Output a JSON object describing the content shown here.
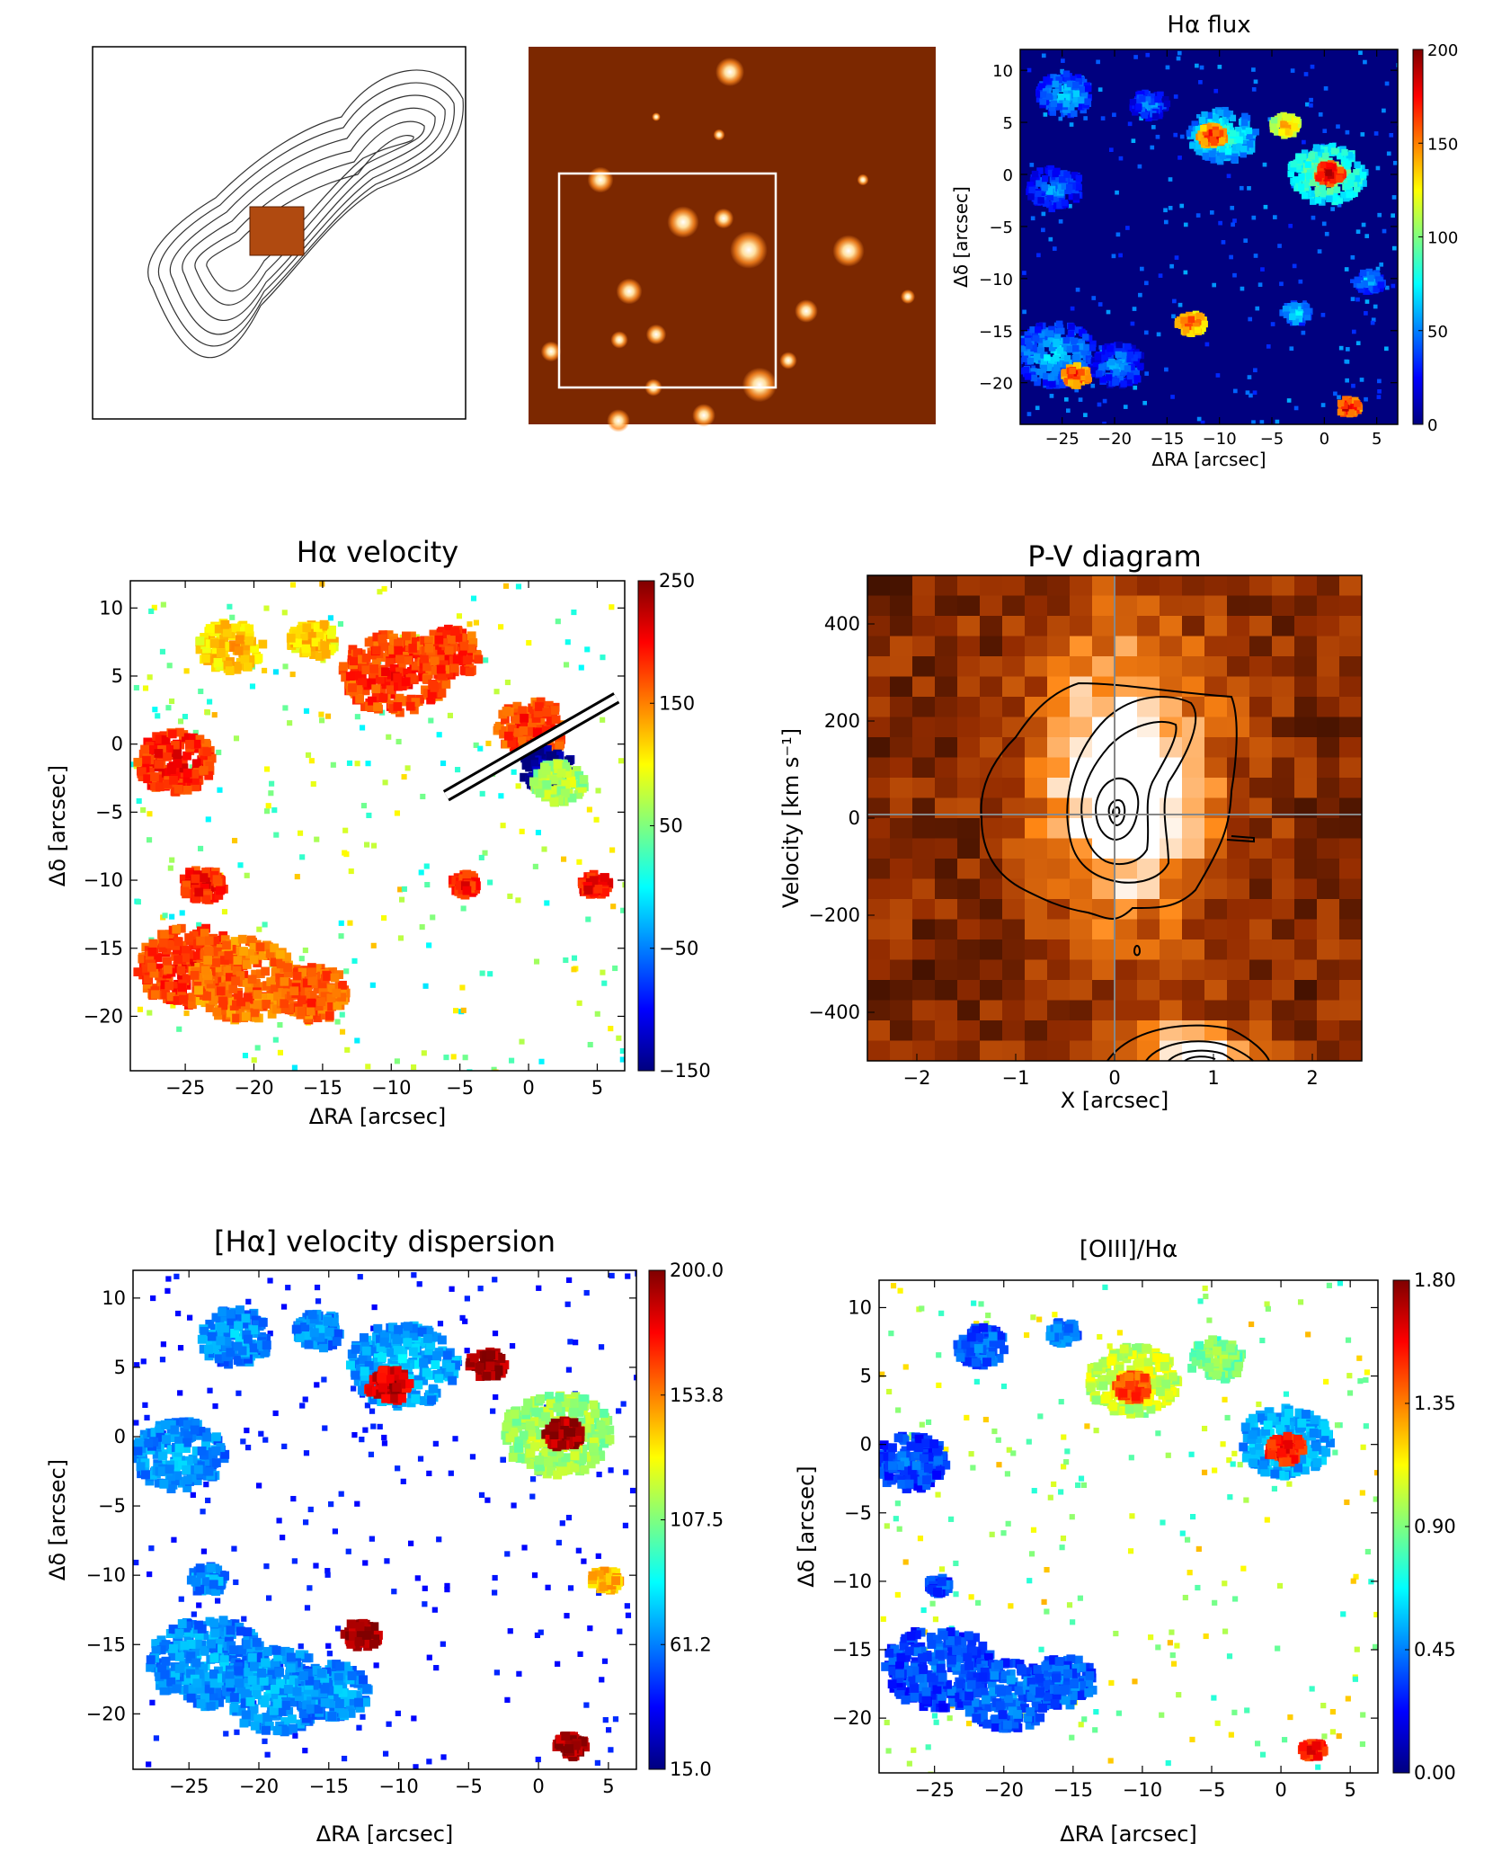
{
  "chart_data": [
    {
      "type": "contour",
      "title": "",
      "description_marks": "radio contours with inset IFU field"
    },
    {
      "type": "image",
      "title": ""
    },
    {
      "type": "heatmap",
      "title": "Hα flux",
      "xlabel": "ΔRA [arcsec]",
      "ylabel": "Δδ [arcsec]",
      "xticks": [
        "−25",
        "−20",
        "−15",
        "−10",
        "−5",
        "0",
        "5"
      ],
      "yticks": [
        "10",
        "5",
        "0",
        "−5",
        "−10",
        "−15",
        "−20"
      ],
      "xlim": [
        -29,
        7
      ],
      "ylim": [
        -24,
        12
      ],
      "colorbar_ticks": [
        "200",
        "150",
        "100",
        "50",
        "0"
      ],
      "colorbar_range": [
        0,
        200
      ],
      "colormap": [
        "#00007f",
        "#0000ff",
        "#00ffff",
        "#7fff7f",
        "#ffff00",
        "#ff7f00",
        "#ff0000",
        "#7f0000"
      ],
      "background": "#00007f",
      "blobs": [
        {
          "x": -25,
          "y": 8,
          "r": 2,
          "v": 70
        },
        {
          "x": -17,
          "y": 7,
          "r": 1.3,
          "v": 60
        },
        {
          "x": -10,
          "y": 4,
          "r": 2.5,
          "v": 90
        },
        {
          "x": -11,
          "y": 4,
          "r": 1,
          "v": 180
        },
        {
          "x": -4,
          "y": 5,
          "r": 1,
          "v": 150
        },
        {
          "x": 0,
          "y": 0.3,
          "r": 2.8,
          "v": 110
        },
        {
          "x": 0.2,
          "y": 0.4,
          "r": 1,
          "v": 200
        },
        {
          "x": -26,
          "y": -1,
          "r": 2,
          "v": 60
        },
        {
          "x": -26,
          "y": -17,
          "r": 3,
          "v": 70
        },
        {
          "x": -24,
          "y": -19,
          "r": 1,
          "v": 180
        },
        {
          "x": -20,
          "y": -18,
          "r": 2,
          "v": 60
        },
        {
          "x": -13,
          "y": -14,
          "r": 1,
          "v": 170
        },
        {
          "x": -3,
          "y": -13,
          "r": 1,
          "v": 80
        },
        {
          "x": 4,
          "y": -10,
          "r": 1,
          "v": 70
        },
        {
          "x": 2,
          "y": -22,
          "r": 0.8,
          "v": 190
        }
      ]
    },
    {
      "type": "heatmap",
      "title": "Hα velocity",
      "xlabel": "ΔRA [arcsec]",
      "ylabel": "Δδ [arcsec]",
      "xticks": [
        "−25",
        "−20",
        "−15",
        "−10",
        "−5",
        "0",
        "5"
      ],
      "yticks": [
        "10",
        "5",
        "0",
        "−5",
        "−10",
        "−15",
        "−20"
      ],
      "xlim": [
        -29,
        7
      ],
      "ylim": [
        -24,
        12
      ],
      "colorbar_ticks": [
        "250",
        "150",
        "50",
        "−50",
        "−150"
      ],
      "colorbar_range": [
        -150,
        250
      ],
      "colormap": [
        "#00007f",
        "#0000ff",
        "#00ffff",
        "#7fff7f",
        "#ffff00",
        "#ff7f00",
        "#ff0000",
        "#7f0000"
      ],
      "background": "#ffffff",
      "slit": {
        "x1": -6,
        "y1": -3.8,
        "x2": 6.4,
        "y2": 3.4
      },
      "blobs": [
        {
          "x": -22,
          "y": 7.5,
          "r": 1.8,
          "v": 130
        },
        {
          "x": -16,
          "y": 8,
          "r": 1.3,
          "v": 130
        },
        {
          "x": -10,
          "y": 5.5,
          "r": 3,
          "v": 190
        },
        {
          "x": -6,
          "y": 7,
          "r": 1.8,
          "v": 190
        },
        {
          "x": 0,
          "y": 1.5,
          "r": 2,
          "v": 190
        },
        {
          "x": 1,
          "y": -1.5,
          "r": 1.5,
          "v": -130
        },
        {
          "x": 2,
          "y": -2.5,
          "r": 1.5,
          "v": 80
        },
        {
          "x": -26,
          "y": -1,
          "r": 2.2,
          "v": 200
        },
        {
          "x": -25,
          "y": -16,
          "r": 3,
          "v": 190
        },
        {
          "x": -21,
          "y": -17,
          "r": 3,
          "v": 170
        },
        {
          "x": -16,
          "y": -18,
          "r": 2,
          "v": 180
        },
        {
          "x": -24,
          "y": -10,
          "r": 1.2,
          "v": 200
        },
        {
          "x": -5,
          "y": -10,
          "r": 0.8,
          "v": 200
        },
        {
          "x": 4.5,
          "y": -10,
          "r": 0.8,
          "v": 210
        }
      ]
    },
    {
      "type": "heatmap",
      "title": "P-V diagram",
      "xlabel": "X [arcsec]",
      "ylabel": "Velocity [km s⁻¹]",
      "xticks": [
        "−2",
        "−1",
        "0",
        "1",
        "2"
      ],
      "yticks": [
        "400",
        "200",
        "0",
        "−200",
        "−400"
      ],
      "xlim": [
        -2.5,
        2.5
      ],
      "ylim": [
        -500,
        500
      ],
      "colormap": [
        "#000000",
        "#7f2a00",
        "#ff7f00",
        "#ffffff"
      ]
    },
    {
      "type": "heatmap",
      "title": "[Hα] velocity dispersion",
      "xlabel": "ΔRA [arcsec]",
      "ylabel": "Δδ [arcsec]",
      "xticks": [
        "−25",
        "−20",
        "−15",
        "−10",
        "−5",
        "0",
        "5"
      ],
      "yticks": [
        "10",
        "5",
        "0",
        "−5",
        "−10",
        "−15",
        "−20"
      ],
      "xlim": [
        -29,
        7
      ],
      "ylim": [
        -24,
        12
      ],
      "colorbar_ticks": [
        "200.0",
        "153.8",
        "107.5",
        "61.2",
        "15.0"
      ],
      "colorbar_range": [
        15,
        200
      ],
      "colormap": [
        "#00007f",
        "#0000ff",
        "#00ffff",
        "#7fff7f",
        "#ffff00",
        "#ff7f00",
        "#ff0000",
        "#7f0000"
      ],
      "background": "#ffffff",
      "blobs": [
        {
          "x": -22,
          "y": 7.5,
          "r": 2,
          "v": 70
        },
        {
          "x": -16,
          "y": 8,
          "r": 1.3,
          "v": 70
        },
        {
          "x": -10,
          "y": 5.5,
          "r": 3,
          "v": 75
        },
        {
          "x": -11,
          "y": 4,
          "r": 1.2,
          "v": 190
        },
        {
          "x": -4,
          "y": 5.5,
          "r": 1,
          "v": 200
        },
        {
          "x": 1,
          "y": 0.5,
          "r": 3,
          "v": 120
        },
        {
          "x": 1.5,
          "y": 0.5,
          "r": 1,
          "v": 200
        },
        {
          "x": -26,
          "y": -1,
          "r": 2.5,
          "v": 70
        },
        {
          "x": -24,
          "y": -16,
          "r": 3.2,
          "v": 70
        },
        {
          "x": -19,
          "y": -18,
          "r": 3,
          "v": 70
        },
        {
          "x": -15,
          "y": -18,
          "r": 2,
          "v": 70
        },
        {
          "x": -13,
          "y": -14,
          "r": 1,
          "v": 200
        },
        {
          "x": 4.5,
          "y": -10,
          "r": 0.8,
          "v": 150
        },
        {
          "x": 2,
          "y": -22,
          "r": 0.8,
          "v": 200
        },
        {
          "x": -24,
          "y": -10,
          "r": 1,
          "v": 70
        }
      ]
    },
    {
      "type": "heatmap",
      "title": "[OIII]/Hα",
      "xlabel": "ΔRA [arcsec]",
      "ylabel": "Δδ [arcsec]",
      "xticks": [
        "−25",
        "−20",
        "−15",
        "−10",
        "−5",
        "0",
        "5"
      ],
      "yticks": [
        "10",
        "5",
        "0",
        "−5",
        "−10",
        "−15",
        "−20"
      ],
      "xlim": [
        -29,
        7
      ],
      "ylim": [
        -24,
        12
      ],
      "colorbar_ticks": [
        "1.80",
        "1.35",
        "0.90",
        "0.45",
        "0.00"
      ],
      "colorbar_range": [
        0,
        1.8
      ],
      "colormap": [
        "#00007f",
        "#0000ff",
        "#00ffff",
        "#7fff7f",
        "#ffff00",
        "#ff7f00",
        "#ff0000",
        "#7f0000"
      ],
      "background": "#ffffff",
      "blobs": [
        {
          "x": -22,
          "y": 7.5,
          "r": 1.4,
          "v": 0.45
        },
        {
          "x": -16,
          "y": 8.5,
          "r": 0.8,
          "v": 0.5
        },
        {
          "x": -11,
          "y": 5,
          "r": 2.5,
          "v": 1.1
        },
        {
          "x": -11,
          "y": 4.5,
          "r": 1,
          "v": 1.5
        },
        {
          "x": -5,
          "y": 6.5,
          "r": 1.5,
          "v": 0.95
        },
        {
          "x": 0,
          "y": 0.5,
          "r": 2.5,
          "v": 0.6
        },
        {
          "x": 0,
          "y": 0,
          "r": 1,
          "v": 1.6
        },
        {
          "x": -27,
          "y": -1,
          "r": 2,
          "v": 0.4
        },
        {
          "x": -25,
          "y": -16,
          "r": 3,
          "v": 0.4
        },
        {
          "x": -20,
          "y": -18,
          "r": 2.5,
          "v": 0.45
        },
        {
          "x": -16,
          "y": -17,
          "r": 1.8,
          "v": 0.45
        },
        {
          "x": 2,
          "y": -22,
          "r": 0.6,
          "v": 1.6
        },
        {
          "x": -25,
          "y": -10,
          "r": 0.6,
          "v": 0.4
        }
      ]
    }
  ]
}
